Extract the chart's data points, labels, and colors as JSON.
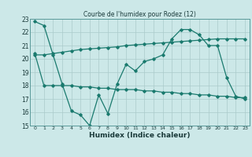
{
  "title": "Courbe de l'humidex pour Rodez (12)",
  "xlabel": "Humidex (Indice chaleur)",
  "bg_color": "#cce8e8",
  "line_color": "#1a7a6e",
  "grid_color": "#aacaca",
  "ylim": [
    15,
    23
  ],
  "xlim": [
    -0.5,
    23.5
  ],
  "yticks": [
    15,
    16,
    17,
    18,
    19,
    20,
    21,
    22,
    23
  ],
  "xticks": [
    0,
    1,
    2,
    3,
    4,
    5,
    6,
    7,
    8,
    9,
    10,
    11,
    12,
    13,
    14,
    15,
    16,
    17,
    18,
    19,
    20,
    21,
    22,
    23
  ],
  "line1_y": [
    22.8,
    22.5,
    20.3,
    18.1,
    16.1,
    15.8,
    15.0,
    17.3,
    15.9,
    18.1,
    19.6,
    19.1,
    19.8,
    20.0,
    20.3,
    21.5,
    22.2,
    22.2,
    21.8,
    21.0,
    21.0,
    18.6,
    17.2,
    17.0
  ],
  "line2_y": [
    20.3,
    20.3,
    20.4,
    20.5,
    20.6,
    20.7,
    20.75,
    20.8,
    20.85,
    20.9,
    21.0,
    21.05,
    21.1,
    21.15,
    21.2,
    21.25,
    21.3,
    21.35,
    21.4,
    21.45,
    21.5,
    21.5,
    21.5,
    21.5
  ],
  "line3_y": [
    20.4,
    18.0,
    18.0,
    18.0,
    18.0,
    17.9,
    17.9,
    17.8,
    17.8,
    17.7,
    17.7,
    17.7,
    17.6,
    17.6,
    17.5,
    17.5,
    17.4,
    17.4,
    17.3,
    17.3,
    17.2,
    17.2,
    17.1,
    17.1
  ]
}
